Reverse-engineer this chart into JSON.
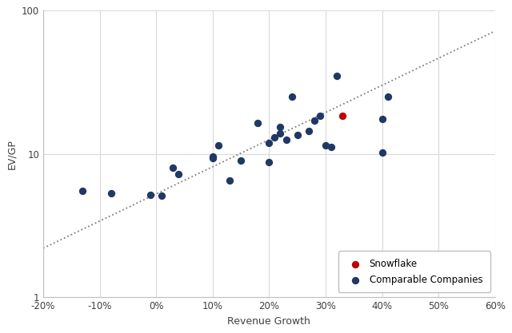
{
  "comparable_x": [
    -0.13,
    -0.08,
    -0.01,
    0.01,
    0.03,
    0.04,
    0.1,
    0.1,
    0.11,
    0.13,
    0.15,
    0.18,
    0.2,
    0.2,
    0.21,
    0.22,
    0.22,
    0.23,
    0.24,
    0.25,
    0.27,
    0.28,
    0.29,
    0.3,
    0.31,
    0.32,
    0.4,
    0.4,
    0.41
  ],
  "comparable_y": [
    5.5,
    5.3,
    5.2,
    5.1,
    8.0,
    7.2,
    9.3,
    9.6,
    11.5,
    6.5,
    9.0,
    16.5,
    8.8,
    12.0,
    13.0,
    14.0,
    15.5,
    12.5,
    25.0,
    13.5,
    14.5,
    17.0,
    18.5,
    11.5,
    11.2,
    35.0,
    10.2,
    17.5,
    25.0
  ],
  "snowflake_x": [
    0.33
  ],
  "snowflake_y": [
    18.5
  ],
  "trendline_x": [
    -0.2,
    0.6
  ],
  "trendline_y": [
    2.2,
    72.0
  ],
  "dot_color": "#1F3864",
  "snowflake_color": "#C00000",
  "trendline_color": "#7f7f7f",
  "xlabel": "Revenue Growth",
  "ylabel": "EV/GP",
  "xlim": [
    -0.2,
    0.6
  ],
  "ylim_log": [
    1,
    100
  ],
  "xticks": [
    -0.2,
    -0.1,
    0.0,
    0.1,
    0.2,
    0.3,
    0.4,
    0.5,
    0.6
  ],
  "yticks": [
    1,
    10,
    100
  ],
  "legend_labels": [
    "Snowflake",
    "Comparable Companies"
  ],
  "dot_size": 45,
  "background_color": "#ffffff",
  "grid_color": "#d9d9d9",
  "spine_color": "#bfbfbf"
}
